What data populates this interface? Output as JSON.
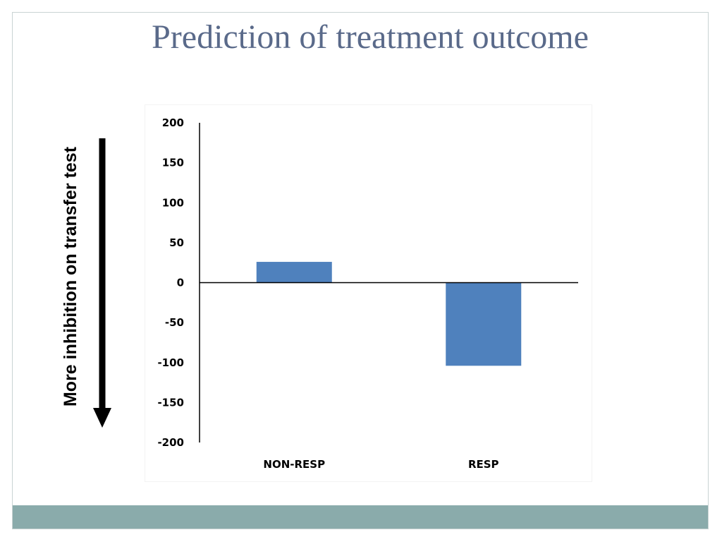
{
  "slide": {
    "title": "Prediction of treatment outcome",
    "side_label": "More inhibition on transfer test",
    "colors": {
      "title": "#5a6a8a",
      "bar": "#4f81bd",
      "footer": "#8aabab"
    }
  },
  "chart_data": {
    "type": "bar",
    "categories": [
      "NON-RESP",
      "RESP"
    ],
    "values": [
      26,
      -104
    ],
    "ylim": [
      -200,
      200
    ],
    "yticks": [
      200,
      150,
      100,
      50,
      0,
      -50,
      -100,
      -150,
      -200
    ],
    "xlabel": "",
    "ylabel": "",
    "grid": false,
    "legend": "none"
  }
}
